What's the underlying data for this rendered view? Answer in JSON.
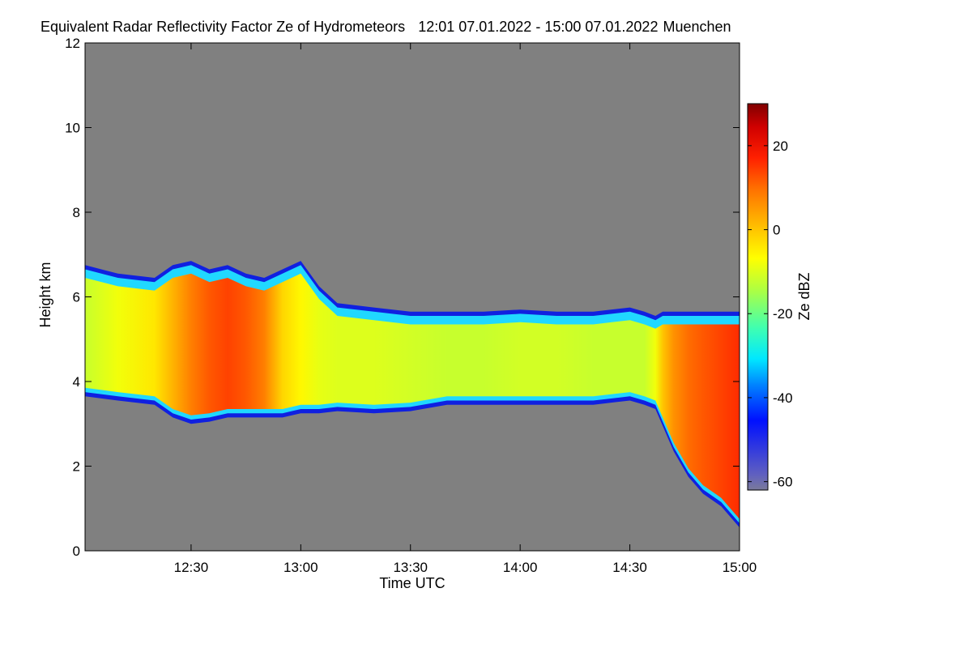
{
  "chart_data": {
    "type": "heatmap",
    "title": "Equivalent Radar Reflectivity Factor Ze of Hydrometeors",
    "time_range": "12:01 07.01.2022 - 15:00 07.01.2022",
    "location": "Muenchen",
    "xlabel": "Time UTC",
    "ylabel": "Height km",
    "x_range_minutes_utc": [
      721,
      900
    ],
    "ylim": [
      0,
      12
    ],
    "x_ticks": [
      {
        "label": "12:30",
        "value": 750
      },
      {
        "label": "13:00",
        "value": 780
      },
      {
        "label": "13:30",
        "value": 810
      },
      {
        "label": "14:00",
        "value": 840
      },
      {
        "label": "14:30",
        "value": 870
      },
      {
        "label": "15:00",
        "value": 900
      }
    ],
    "y_ticks": [
      {
        "label": "0",
        "value": 0
      },
      {
        "label": "2",
        "value": 2
      },
      {
        "label": "4",
        "value": 4
      },
      {
        "label": "6",
        "value": 6
      },
      {
        "label": "8",
        "value": 8
      },
      {
        "label": "10",
        "value": 10
      },
      {
        "label": "12",
        "value": 12
      }
    ],
    "colorbar": {
      "label": "Ze dBZ",
      "range": [
        -62,
        30
      ],
      "ticks": [
        {
          "label": "20",
          "value": 20
        },
        {
          "label": "0",
          "value": 0
        },
        {
          "label": "-20",
          "value": -20
        },
        {
          "label": "-40",
          "value": -40
        },
        {
          "label": "-60",
          "value": -60
        }
      ]
    },
    "no_signal_color": "#808080",
    "cloud_layer": {
      "description": "top/base heights in km and typical reflectivity in dBZ over time (minutes after midnight UTC)",
      "time": [
        721,
        730,
        740,
        745,
        750,
        755,
        760,
        765,
        770,
        775,
        780,
        785,
        790,
        800,
        810,
        820,
        830,
        840,
        850,
        860,
        870,
        874,
        877,
        879,
        882,
        886,
        890,
        895,
        900
      ],
      "top_km": [
        6.7,
        6.5,
        6.4,
        6.7,
        6.8,
        6.6,
        6.7,
        6.5,
        6.4,
        6.6,
        6.8,
        6.2,
        5.8,
        5.7,
        5.6,
        5.6,
        5.6,
        5.65,
        5.6,
        5.6,
        5.7,
        5.6,
        5.5,
        5.6,
        5.6,
        5.6,
        5.6,
        5.6,
        5.6
      ],
      "base_km": [
        3.7,
        3.6,
        3.5,
        3.2,
        3.05,
        3.1,
        3.2,
        3.2,
        3.2,
        3.2,
        3.3,
        3.3,
        3.35,
        3.3,
        3.35,
        3.5,
        3.5,
        3.5,
        3.5,
        3.5,
        3.6,
        3.5,
        3.4,
        3.0,
        2.4,
        1.8,
        1.4,
        1.1,
        0.6
      ],
      "ze_dbz": [
        -12,
        -8,
        -4,
        2,
        8,
        12,
        14,
        12,
        8,
        -2,
        -6,
        -9,
        -10,
        -10,
        -11,
        -12,
        -12,
        -11,
        -11,
        -12,
        -12,
        -12,
        -8,
        0,
        6,
        10,
        12,
        14,
        16
      ]
    }
  }
}
